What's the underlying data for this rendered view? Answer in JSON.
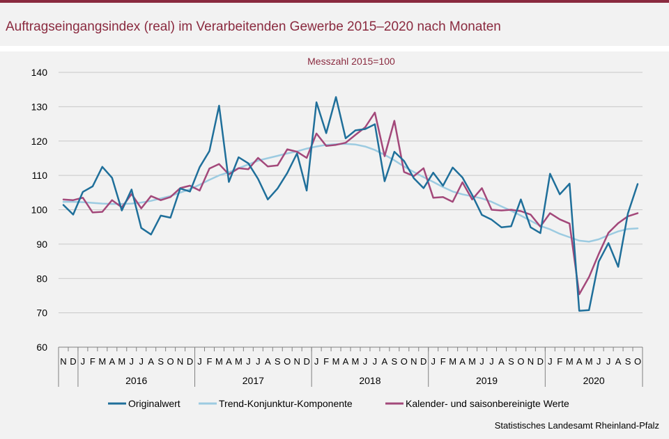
{
  "title": "Auftragseingangsindex (real) im Verarbeitenden Gewerbe 2015–2020 nach Monaten",
  "source": "Statistisches Landesamt  Rheinland-Pfalz",
  "colors": {
    "accent": "#8a2a3f",
    "original": "#1f6f9a",
    "trend": "#9ccbe1",
    "saison": "#a3487a",
    "grid": "#c8c8c8"
  },
  "chart_data": {
    "type": "line",
    "subtitle": "Messzahl  2015=100",
    "ylim": [
      60,
      140
    ],
    "yticks": [
      60,
      70,
      80,
      90,
      100,
      110,
      120,
      130,
      140
    ],
    "grid": "horizontal",
    "legend_position": "bottom",
    "month_labels": [
      "N",
      "D",
      "J",
      "F",
      "M",
      "A",
      "M",
      "J",
      "J",
      "A",
      "S",
      "O",
      "N",
      "D",
      "J",
      "F",
      "M",
      "A",
      "M",
      "J",
      "J",
      "A",
      "S",
      "O",
      "N",
      "D",
      "J",
      "F",
      "M",
      "A",
      "M",
      "J",
      "J",
      "A",
      "S",
      "O",
      "N",
      "D",
      "J",
      "F",
      "M",
      "A",
      "M",
      "J",
      "J",
      "A",
      "S",
      "O",
      "N",
      "D",
      "J",
      "F",
      "M",
      "A",
      "M",
      "J",
      "J",
      "A",
      "S",
      "O"
    ],
    "year_groups": [
      {
        "label": "2016",
        "start": 2,
        "end": 13
      },
      {
        "label": "2017",
        "start": 14,
        "end": 25
      },
      {
        "label": "2018",
        "start": 26,
        "end": 37
      },
      {
        "label": "2019",
        "start": 38,
        "end": 49
      },
      {
        "label": "2020",
        "start": 50,
        "end": 59
      }
    ],
    "x": [
      "2015-11",
      "2015-12",
      "2016-01",
      "2016-02",
      "2016-03",
      "2016-04",
      "2016-05",
      "2016-06",
      "2016-07",
      "2016-08",
      "2016-09",
      "2016-10",
      "2016-11",
      "2016-12",
      "2017-01",
      "2017-02",
      "2017-03",
      "2017-04",
      "2017-05",
      "2017-06",
      "2017-07",
      "2017-08",
      "2017-09",
      "2017-10",
      "2017-11",
      "2017-12",
      "2018-01",
      "2018-02",
      "2018-03",
      "2018-04",
      "2018-05",
      "2018-06",
      "2018-07",
      "2018-08",
      "2018-09",
      "2018-10",
      "2018-11",
      "2018-12",
      "2019-01",
      "2019-02",
      "2019-03",
      "2019-04",
      "2019-05",
      "2019-06",
      "2019-07",
      "2019-08",
      "2019-09",
      "2019-10",
      "2019-11",
      "2019-12",
      "2020-01",
      "2020-02",
      "2020-03",
      "2020-04",
      "2020-05",
      "2020-06",
      "2020-07",
      "2020-08",
      "2020-09",
      "2020-10"
    ],
    "series": [
      {
        "name": "Originalwert",
        "color": "#1f6f9a",
        "values": [
          101.4,
          98.6,
          105.2,
          106.8,
          112.5,
          109.3,
          99.8,
          105.9,
          94.7,
          92.8,
          98.3,
          97.7,
          106.2,
          105.3,
          112.4,
          117.1,
          130.3,
          108.1,
          115.3,
          113.5,
          109.0,
          103.0,
          106.2,
          110.7,
          116.4,
          105.6,
          131.3,
          122.3,
          132.8,
          120.8,
          123.1,
          123.5,
          124.9,
          108.3,
          116.9,
          114.2,
          109.2,
          106.3,
          110.8,
          107.0,
          112.3,
          109.4,
          104.3,
          98.5,
          97.1,
          94.9,
          95.2,
          103.0,
          94.9,
          93.2,
          110.5,
          104.5,
          107.6,
          70.6,
          70.8,
          84.9,
          90.3,
          83.4,
          98.9,
          107.5
        ]
      },
      {
        "name": "Trend-Konjunktur-Komponente",
        "color": "#9ccbe1",
        "values": [
          102.3,
          102.3,
          102.2,
          102.0,
          101.8,
          101.7,
          101.7,
          101.8,
          102.1,
          102.6,
          103.3,
          104.0,
          105.0,
          106.0,
          107.3,
          108.7,
          110.0,
          110.9,
          112.1,
          113.2,
          114.3,
          115.0,
          115.7,
          116.4,
          117.0,
          117.8,
          118.4,
          118.9,
          119.1,
          119.2,
          119.0,
          118.4,
          117.4,
          116.0,
          114.4,
          112.6,
          111.0,
          109.5,
          108.1,
          106.6,
          105.3,
          104.5,
          103.9,
          103.3,
          102.3,
          101.0,
          99.7,
          98.3,
          96.8,
          95.3,
          94.3,
          93.0,
          92.0,
          91.0,
          90.7,
          91.4,
          92.6,
          93.7,
          94.4,
          94.6
        ]
      },
      {
        "name": "Kalender- und saisonbereinigte Werte",
        "color": "#a3487a",
        "values": [
          103.0,
          102.8,
          103.5,
          99.2,
          99.4,
          102.8,
          100.7,
          104.6,
          100.4,
          104.0,
          102.8,
          103.7,
          106.3,
          107.0,
          105.6,
          112.0,
          113.3,
          110.3,
          112.1,
          111.8,
          115.1,
          112.6,
          112.9,
          117.6,
          116.9,
          115.1,
          122.2,
          118.6,
          118.9,
          119.5,
          121.8,
          124.0,
          128.3,
          115.6,
          125.9,
          111.0,
          109.8,
          112.1,
          103.5,
          103.7,
          102.3,
          108.0,
          103.0,
          106.3,
          100.0,
          99.8,
          100.0,
          99.6,
          98.6,
          95.1,
          99.0,
          97.2,
          96.0,
          75.4,
          80.4,
          87.1,
          93.3,
          96.1,
          98.1,
          99.0
        ]
      }
    ]
  }
}
